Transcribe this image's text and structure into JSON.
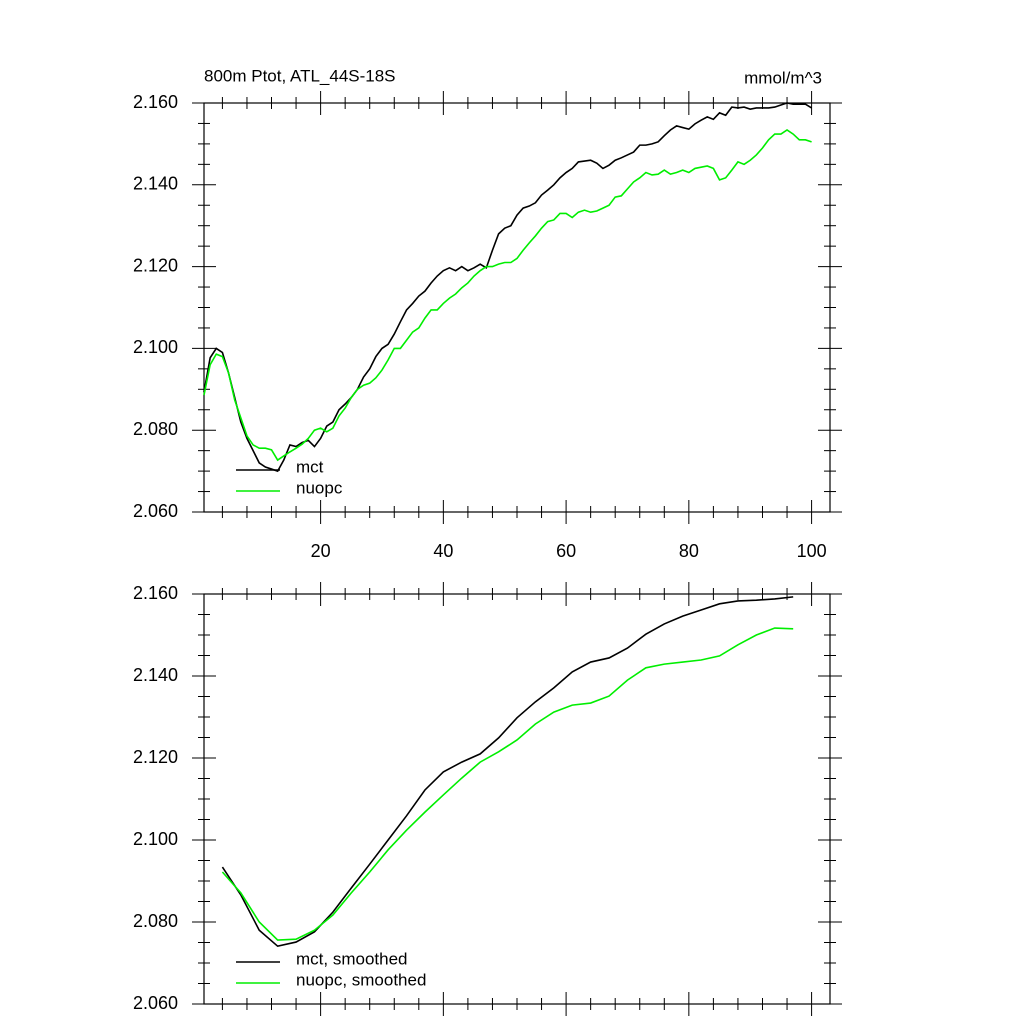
{
  "chart_data": [
    {
      "type": "line",
      "title": "800m Ptot, ATL_44S-18S",
      "units": "mmol/m^3",
      "x": [
        1,
        2,
        3,
        4,
        5,
        6,
        7,
        8,
        9,
        10,
        11,
        12,
        13,
        14,
        15,
        16,
        17,
        18,
        19,
        20,
        21,
        22,
        23,
        24,
        25,
        26,
        27,
        28,
        29,
        30,
        31,
        32,
        33,
        34,
        35,
        36,
        37,
        38,
        39,
        40,
        41,
        42,
        43,
        44,
        45,
        46,
        47,
        48,
        49,
        50,
        51,
        52,
        53,
        54,
        55,
        56,
        57,
        58,
        59,
        60,
        61,
        62,
        63,
        64,
        65,
        66,
        67,
        68,
        69,
        70,
        71,
        72,
        73,
        74,
        75,
        76,
        77,
        78,
        79,
        80,
        81,
        82,
        83,
        84,
        85,
        86,
        87,
        88,
        89,
        90,
        91,
        92,
        93,
        94,
        95,
        96,
        97,
        98,
        99,
        100
      ],
      "series": [
        {
          "name": "mct",
          "color": "#000000",
          "values": [
            2.0893,
            2.0977,
            2.1,
            2.099,
            2.094,
            2.088,
            2.082,
            2.078,
            2.075,
            2.072,
            2.071,
            2.0705,
            2.07,
            2.0727,
            2.0764,
            2.076,
            2.077,
            2.0775,
            2.076,
            2.078,
            2.081,
            2.082,
            2.085,
            2.0864,
            2.088,
            2.09,
            2.093,
            2.095,
            2.098,
            2.1,
            2.101,
            2.1035,
            2.1065,
            2.1094,
            2.111,
            2.1128,
            2.114,
            2.116,
            2.1177,
            2.119,
            2.1197,
            2.119,
            2.12,
            2.119,
            2.1197,
            2.1206,
            2.1197,
            2.124,
            2.128,
            2.1294,
            2.13,
            2.1326,
            2.1343,
            2.1348,
            2.1356,
            2.1375,
            2.1387,
            2.14,
            2.1417,
            2.143,
            2.144,
            2.1456,
            2.1458,
            2.146,
            2.1453,
            2.144,
            2.1448,
            2.146,
            2.1466,
            2.1473,
            2.148,
            2.1497,
            2.1497,
            2.15,
            2.1505,
            2.152,
            2.1534,
            2.1544,
            2.154,
            2.1536,
            2.1549,
            2.1558,
            2.1566,
            2.156,
            2.1576,
            2.157,
            2.159,
            2.1588,
            2.159,
            2.1585,
            2.1588,
            2.1588,
            2.1588,
            2.159,
            2.1595,
            2.16,
            2.1597,
            2.1597,
            2.1597,
            2.1588
          ]
        },
        {
          "name": "nuopc",
          "color": "#00ee00",
          "values": [
            2.0886,
            2.096,
            2.0986,
            2.098,
            2.094,
            2.0874,
            2.083,
            2.0786,
            2.0764,
            2.0756,
            2.0756,
            2.0752,
            2.0727,
            2.0737,
            2.0747,
            2.0756,
            2.0766,
            2.078,
            2.08,
            2.0805,
            2.0796,
            2.0805,
            2.0835,
            2.0854,
            2.088,
            2.09,
            2.091,
            2.0915,
            2.0928,
            2.0947,
            2.0972,
            2.1,
            2.1,
            2.102,
            2.104,
            2.105,
            2.1074,
            2.1094,
            2.1094,
            2.111,
            2.1123,
            2.1133,
            2.1148,
            2.116,
            2.1177,
            2.119,
            2.12,
            2.12,
            2.1206,
            2.121,
            2.121,
            2.122,
            2.124,
            2.1258,
            2.1275,
            2.1294,
            2.131,
            2.1314,
            2.133,
            2.133,
            2.132,
            2.1333,
            2.1338,
            2.1333,
            2.1336,
            2.1343,
            2.135,
            2.137,
            2.1373,
            2.139,
            2.1407,
            2.1417,
            2.143,
            2.1424,
            2.1426,
            2.1436,
            2.1426,
            2.143,
            2.1436,
            2.143,
            2.144,
            2.1443,
            2.1446,
            2.144,
            2.1412,
            2.1417,
            2.1436,
            2.1456,
            2.145,
            2.146,
            2.1473,
            2.149,
            2.151,
            2.1524,
            2.1524,
            2.1534,
            2.1524,
            2.151,
            2.151,
            2.1505
          ]
        }
      ],
      "xlim": [
        1,
        103
      ],
      "xticks": [
        20,
        40,
        60,
        80,
        100
      ],
      "ylim": [
        2.06,
        2.16
      ],
      "yticks": [
        {
          "value": 2.06,
          "label": "2.060"
        },
        {
          "value": 2.08,
          "label": "2.080"
        },
        {
          "value": 2.1,
          "label": "2.100"
        },
        {
          "value": 2.12,
          "label": "2.120"
        },
        {
          "value": 2.14,
          "label": "2.140"
        },
        {
          "value": 2.16,
          "label": "2.160"
        }
      ],
      "legend": "lower left",
      "show_xtick_labels": true
    },
    {
      "type": "line",
      "x": [
        4,
        7,
        10,
        13,
        16,
        19,
        22,
        25,
        28,
        31,
        34,
        37,
        40,
        43,
        46,
        49,
        52,
        55,
        58,
        61,
        64,
        67,
        70,
        73,
        76,
        79,
        82,
        85,
        88,
        91,
        94,
        97
      ],
      "series": [
        {
          "name": "mct, smoothed",
          "color": "#000000",
          "values": [
            2.0934,
            2.0866,
            2.078,
            2.0741,
            2.0751,
            2.0776,
            2.0824,
            2.0883,
            2.0941,
            2.1,
            2.1059,
            2.1122,
            2.1166,
            2.119,
            2.121,
            2.1249,
            2.1298,
            2.1337,
            2.1371,
            2.141,
            2.1434,
            2.1444,
            2.1468,
            2.1502,
            2.1527,
            2.1546,
            2.1561,
            2.1576,
            2.1583,
            2.1585,
            2.1588,
            2.1593
          ]
        },
        {
          "name": "nuopc, smoothed",
          "color": "#00ee00",
          "values": [
            2.0922,
            2.0871,
            2.08,
            2.0756,
            2.0758,
            2.078,
            2.0817,
            2.0871,
            2.0922,
            2.0976,
            2.1024,
            2.1068,
            2.111,
            2.1151,
            2.119,
            2.1215,
            2.1244,
            2.1283,
            2.1312,
            2.1329,
            2.1334,
            2.1351,
            2.139,
            2.142,
            2.1429,
            2.1434,
            2.1439,
            2.1449,
            2.1476,
            2.15,
            2.1517,
            2.1515
          ]
        }
      ],
      "xlim": [
        1,
        103
      ],
      "xticks": [
        20,
        40,
        60,
        80,
        100
      ],
      "ylim": [
        2.06,
        2.16
      ],
      "yticks": [
        {
          "value": 2.06,
          "label": "2.060"
        },
        {
          "value": 2.08,
          "label": "2.080"
        },
        {
          "value": 2.1,
          "label": "2.100"
        },
        {
          "value": 2.12,
          "label": "2.120"
        },
        {
          "value": 2.14,
          "label": "2.140"
        },
        {
          "value": 2.16,
          "label": "2.160"
        }
      ],
      "legend": "lower left",
      "show_xtick_labels": false
    }
  ]
}
